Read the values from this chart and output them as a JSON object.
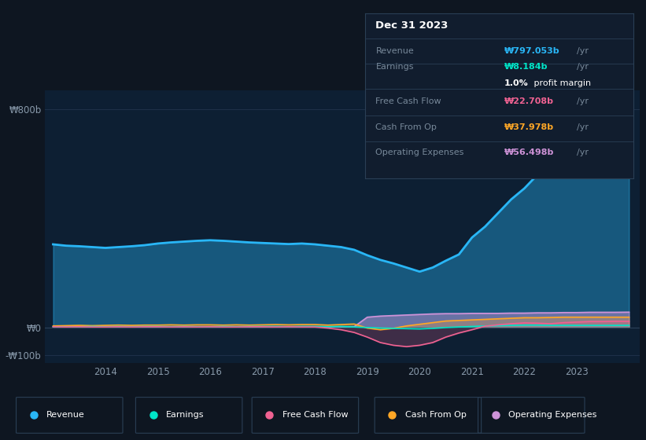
{
  "background_color": "#0e1621",
  "plot_bg_color": "#0d1f33",
  "title": "Dec 31 2023",
  "tooltip_bg": "#111d2e",
  "years": [
    2013.0,
    2013.25,
    2013.5,
    2013.75,
    2014.0,
    2014.25,
    2014.5,
    2014.75,
    2015.0,
    2015.25,
    2015.5,
    2015.75,
    2016.0,
    2016.25,
    2016.5,
    2016.75,
    2017.0,
    2017.25,
    2017.5,
    2017.75,
    2018.0,
    2018.25,
    2018.5,
    2018.75,
    2019.0,
    2019.25,
    2019.5,
    2019.75,
    2020.0,
    2020.25,
    2020.5,
    2020.75,
    2021.0,
    2021.25,
    2021.5,
    2021.75,
    2022.0,
    2022.25,
    2022.5,
    2022.75,
    2023.0,
    2023.25,
    2023.5,
    2023.75,
    2024.0
  ],
  "revenue": [
    305,
    300,
    298,
    295,
    292,
    295,
    298,
    302,
    308,
    312,
    315,
    318,
    320,
    318,
    315,
    312,
    310,
    308,
    306,
    308,
    305,
    300,
    295,
    285,
    265,
    248,
    235,
    220,
    205,
    220,
    245,
    268,
    330,
    370,
    420,
    470,
    510,
    560,
    620,
    690,
    735,
    760,
    780,
    795,
    797
  ],
  "earnings": [
    3,
    2,
    3,
    4,
    3,
    4,
    3,
    4,
    4,
    3,
    4,
    3,
    3,
    4,
    3,
    4,
    4,
    4,
    3,
    4,
    4,
    3,
    4,
    2,
    0,
    -2,
    -3,
    -4,
    -5,
    -3,
    0,
    2,
    4,
    6,
    7,
    8,
    9,
    9,
    8,
    8,
    8,
    8,
    8,
    8,
    8.184
  ],
  "free_cash_flow": [
    3,
    2,
    3,
    2,
    2,
    3,
    2,
    3,
    3,
    2,
    3,
    2,
    3,
    2,
    2,
    3,
    3,
    2,
    3,
    2,
    2,
    -2,
    -8,
    -18,
    -35,
    -55,
    -65,
    -70,
    -65,
    -55,
    -35,
    -20,
    -8,
    5,
    10,
    14,
    17,
    16,
    14,
    18,
    20,
    22,
    22,
    23,
    22.708
  ],
  "cash_from_op": [
    6,
    7,
    8,
    7,
    8,
    9,
    8,
    9,
    9,
    10,
    9,
    10,
    10,
    9,
    10,
    9,
    10,
    11,
    10,
    11,
    11,
    9,
    11,
    13,
    -2,
    -8,
    -3,
    6,
    12,
    18,
    24,
    26,
    28,
    30,
    32,
    34,
    36,
    36,
    37,
    38,
    38,
    38,
    38,
    38,
    37.978
  ],
  "operating_expenses": [
    3,
    3,
    3,
    3,
    3,
    3,
    3,
    3,
    3,
    3,
    3,
    3,
    3,
    3,
    3,
    3,
    3,
    3,
    3,
    3,
    3,
    3,
    3,
    3,
    38,
    42,
    44,
    46,
    48,
    50,
    51,
    51,
    52,
    52,
    52,
    53,
    53,
    54,
    54,
    55,
    55,
    56,
    56,
    56,
    56.498
  ],
  "revenue_color": "#29b6f6",
  "earnings_color": "#00e5c8",
  "fcf_color": "#f06292",
  "cashop_color": "#ffa726",
  "opex_color": "#ce93d8",
  "ylim_min": -130,
  "ylim_max": 870,
  "ytick_labels": [
    "-₩100b",
    "₩0",
    "₩800b"
  ],
  "ytick_values": [
    -100,
    0,
    800
  ],
  "xtick_years": [
    2014,
    2015,
    2016,
    2017,
    2018,
    2019,
    2020,
    2021,
    2022,
    2023
  ],
  "legend_labels": [
    "Revenue",
    "Earnings",
    "Free Cash Flow",
    "Cash From Op",
    "Operating Expenses"
  ],
  "legend_colors": [
    "#29b6f6",
    "#00e5c8",
    "#f06292",
    "#ffa726",
    "#ce93d8"
  ],
  "tooltip": {
    "title": "Dec 31 2023",
    "rows": [
      {
        "label": "Revenue",
        "value": "₩797.053b",
        "extra": "/yr",
        "value_color": "#29b6f6"
      },
      {
        "label": "Earnings",
        "value": "₩8.184b",
        "extra": "/yr",
        "value_color": "#00e5c8"
      },
      {
        "label": "",
        "value": "1.0%",
        "extra": " profit margin",
        "value_color": "#ffffff"
      },
      {
        "label": "Free Cash Flow",
        "value": "₩22.708b",
        "extra": "/yr",
        "value_color": "#f06292"
      },
      {
        "label": "Cash From Op",
        "value": "₩37.978b",
        "extra": "/yr",
        "value_color": "#ffa726"
      },
      {
        "label": "Operating Expenses",
        "value": "₩56.498b",
        "extra": "/yr",
        "value_color": "#ce93d8"
      }
    ]
  }
}
